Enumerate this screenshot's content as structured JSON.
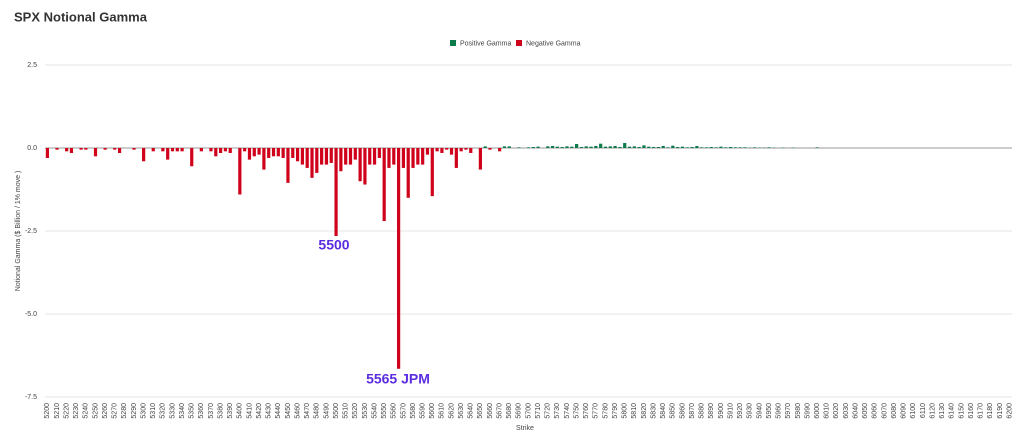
{
  "chart_data": {
    "type": "bar",
    "title": "SPX Notional Gamma",
    "xlabel": "Strike",
    "ylabel": "Notional Gamma ($ Billion / 1% move )",
    "annotations": [
      "5500",
      "5565 JPM"
    ],
    "legend": "top",
    "categories": [
      "5200",
      null,
      "5210",
      null,
      "5220",
      null,
      "5230",
      null,
      "5240",
      null,
      "5250",
      null,
      "5260",
      null,
      "5270",
      null,
      "5280",
      null,
      "5290",
      null,
      "5300",
      null,
      "5310",
      null,
      "5320",
      null,
      "5330",
      null,
      "5340",
      null,
      "5350",
      null,
      "5360",
      null,
      "5370",
      null,
      "5380",
      null,
      "5390",
      null,
      "5400",
      null,
      "5410",
      null,
      "5420",
      null,
      "5430",
      null,
      "5440",
      null,
      "5450",
      null,
      "5460",
      null,
      "5470",
      null,
      "5480",
      null,
      "5490",
      null,
      "5500",
      null,
      "5510",
      null,
      "5520",
      null,
      "5530",
      null,
      "5540",
      null,
      "5550",
      null,
      "5560",
      null,
      "5570",
      null,
      "5580",
      null,
      "5590",
      null,
      "5600",
      null,
      "5610",
      null,
      "5620",
      null,
      "5630",
      null,
      "5640",
      null,
      "5650",
      null,
      "5660",
      null,
      "5670",
      null,
      "5680",
      null,
      "5690",
      null,
      "5700",
      null,
      "5710",
      null,
      "5720",
      null,
      "5730",
      null,
      "5740",
      null,
      "5750",
      null,
      "5760",
      null,
      "5770",
      null,
      "5780",
      null,
      "5790",
      null,
      "5800",
      null,
      "5810",
      null,
      "5820",
      null,
      "5830",
      null,
      "5840",
      null,
      "5850",
      null,
      "5860",
      null,
      "5870",
      null,
      "5880",
      null,
      "5890",
      null,
      "5900",
      null,
      "5910",
      null,
      "5920",
      null,
      "5930",
      null,
      "5940",
      null,
      "5950",
      null,
      "5960",
      null,
      "5970",
      null,
      "5980",
      null,
      "5990",
      null,
      "6000",
      null,
      "6010",
      null,
      "6020",
      null,
      "6030",
      null,
      "6040",
      null,
      "6050",
      null,
      "6060",
      null,
      "6070",
      null,
      "6080",
      null,
      "6090",
      null,
      "6100",
      null,
      "6110",
      null,
      "6120",
      null,
      "6130",
      null,
      "6140",
      null,
      "6150",
      null,
      "6160",
      null,
      "6170",
      null,
      "6180",
      null,
      "6190",
      null,
      "6200"
    ],
    "series": [
      {
        "name": "Positive Gamma",
        "color": "#0b7a4b",
        "values": [
          null,
          0,
          null,
          0,
          null,
          null,
          0,
          null,
          null,
          0,
          null,
          0,
          null,
          0,
          null,
          null,
          0,
          0,
          null,
          0,
          null,
          0,
          null,
          0,
          null,
          null,
          null,
          null,
          null,
          0,
          null,
          0,
          null,
          0,
          null,
          null,
          null,
          null,
          null,
          0,
          null,
          null,
          null,
          null,
          null,
          null,
          null,
          null,
          null,
          null,
          null,
          null,
          null,
          null,
          null,
          null,
          null,
          null,
          null,
          null,
          null,
          null,
          null,
          null,
          null,
          null,
          null,
          null,
          null,
          null,
          null,
          null,
          null,
          null,
          null,
          null,
          null,
          null,
          null,
          null,
          null,
          null,
          null,
          null,
          null,
          null,
          null,
          null,
          null,
          0,
          null,
          0.05,
          null,
          0,
          null,
          0.05,
          0.05,
          0,
          0.02,
          0,
          0.02,
          0.03,
          0.04,
          0,
          0.05,
          0.06,
          0.04,
          0.03,
          0.05,
          0.04,
          0.12,
          0.03,
          0.05,
          0.04,
          0.06,
          0.13,
          0.04,
          0.05,
          0.06,
          0.03,
          0.15,
          0.04,
          0.05,
          0.03,
          0.08,
          0.04,
          0.03,
          0.03,
          0.06,
          0.02,
          0.07,
          0.03,
          0.04,
          0.02,
          0.03,
          0.06,
          0.02,
          0.02,
          0.03,
          0.02,
          0.04,
          0.02,
          0.03,
          0.02,
          0.02,
          0.02,
          0.01,
          0.02,
          0.01,
          0.01,
          0.02,
          0.01,
          0,
          0.01,
          0,
          0.01,
          0,
          0,
          0,
          0,
          0.02,
          0,
          0,
          0,
          0,
          0,
          0,
          0,
          0,
          0,
          0,
          0,
          0,
          0,
          0,
          0,
          0,
          0,
          0,
          0,
          0,
          0,
          0,
          0,
          0,
          0,
          0,
          0,
          0,
          0,
          0,
          0,
          0,
          0,
          0,
          0,
          0,
          0,
          0,
          0,
          0
        ]
      },
      {
        "name": "Negative Gamma",
        "color": "#d0021b",
        "values": [
          -0.3,
          null,
          -0.05,
          null,
          -0.1,
          -0.15,
          null,
          -0.05,
          -0.05,
          null,
          -0.25,
          null,
          -0.05,
          null,
          -0.05,
          -0.15,
          null,
          null,
          -0.05,
          null,
          -0.4,
          null,
          -0.1,
          null,
          -0.1,
          -0.35,
          -0.1,
          -0.1,
          -0.1,
          null,
          -0.55,
          null,
          -0.1,
          null,
          -0.1,
          -0.25,
          -0.15,
          -0.1,
          -0.15,
          null,
          -1.4,
          -0.1,
          -0.35,
          -0.25,
          -0.2,
          -0.65,
          -0.3,
          -0.25,
          -0.25,
          -0.3,
          -1.05,
          -0.3,
          -0.4,
          -0.5,
          -0.6,
          -0.9,
          -0.75,
          -0.5,
          -0.5,
          -0.45,
          -2.65,
          -0.7,
          -0.5,
          -0.5,
          -0.35,
          -1.0,
          -1.1,
          -0.5,
          -0.5,
          -0.3,
          -2.2,
          -0.6,
          -0.5,
          -6.65,
          -0.6,
          -1.5,
          -0.6,
          -0.5,
          -0.5,
          -0.2,
          -1.45,
          -0.1,
          -0.15,
          -0.05,
          -0.2,
          -0.6,
          -0.1,
          -0.05,
          -0.15,
          null,
          -0.65,
          null,
          -0.05,
          null,
          -0.1,
          null,
          null,
          null,
          null,
          null,
          null,
          null,
          null,
          null,
          null,
          null,
          null,
          null,
          null,
          null,
          null,
          null,
          null,
          null,
          null,
          null,
          null,
          null,
          null,
          null,
          null,
          null,
          null,
          null,
          null,
          null,
          null,
          null,
          null,
          null,
          null,
          null,
          null,
          null,
          null,
          null,
          null,
          null,
          null,
          null,
          null,
          null,
          null,
          null,
          null,
          null,
          null,
          null,
          null,
          null,
          null,
          null,
          null,
          null,
          null,
          null,
          null,
          null,
          null,
          null,
          null,
          null,
          null,
          null,
          null,
          null,
          null,
          null,
          null,
          null,
          null,
          null,
          null,
          null,
          null,
          null,
          null,
          null,
          null,
          null,
          null,
          null,
          null,
          null,
          null,
          null,
          null,
          null,
          null,
          null,
          null,
          null,
          null,
          null,
          null,
          null,
          null,
          null,
          null,
          null,
          null
        ]
      }
    ],
    "ylim": [
      -7.5,
      2.5
    ],
    "yticks": [
      {
        "value": -7.5,
        "label": "-7.5"
      },
      {
        "value": -5,
        "label": "-5.0"
      },
      -2.5,
      {
        "value": 0,
        "label": "0.0"
      },
      2.5
    ],
    "grid": true
  }
}
